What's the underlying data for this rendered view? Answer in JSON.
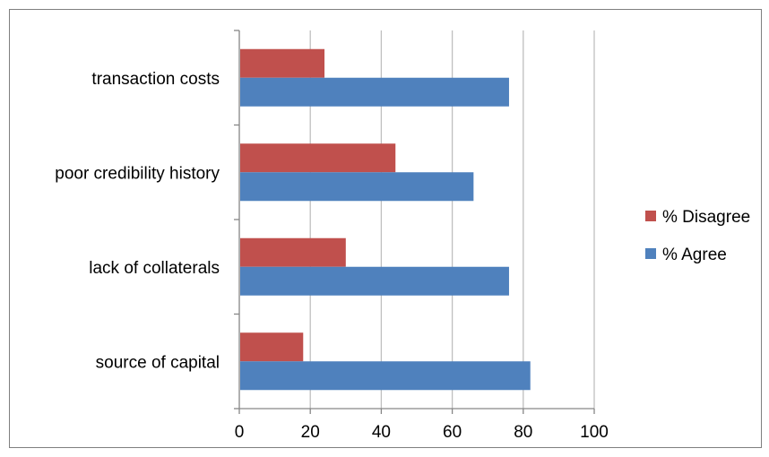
{
  "chart_data": {
    "type": "bar",
    "orientation": "horizontal",
    "categories": [
      "source of capital",
      "lack of collaterals",
      "poor credibility history",
      "transaction costs"
    ],
    "series": [
      {
        "name": "% Agree",
        "color": "#4f81bd",
        "values": [
          82,
          76,
          66,
          76
        ]
      },
      {
        "name": "% Disagree",
        "color": "#c0504d",
        "values": [
          18,
          30,
          44,
          24
        ]
      }
    ],
    "xlim": [
      0,
      100
    ],
    "xticks": [
      "0",
      "20",
      "40",
      "60",
      "80",
      "100"
    ],
    "grid": true,
    "legend_position": "right"
  }
}
